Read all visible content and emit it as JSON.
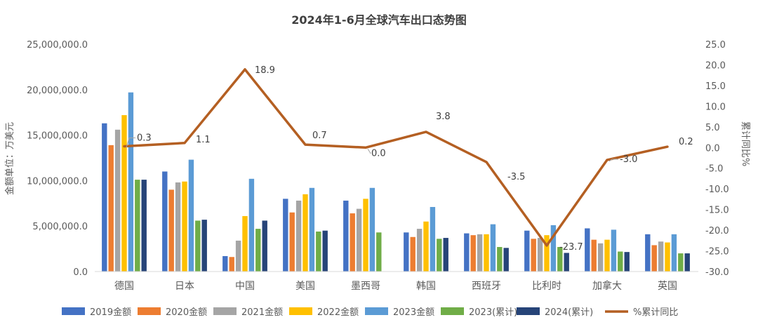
{
  "chart_data": {
    "type": "bar",
    "title": "2024年1-6月全球汽车出口态势图",
    "ylabel": "金额单位：万美元",
    "y2label": "累计同比%",
    "categories": [
      "德国",
      "日本",
      "中国",
      "美国",
      "墨西哥",
      "韩国",
      "西班牙",
      "比利时",
      "加拿大",
      "英国"
    ],
    "ylim": [
      0,
      25000000
    ],
    "y2lim": [
      -30,
      25
    ],
    "yticks": [
      "25,000,000.0",
      "20,000,000.0",
      "15,000,000.0",
      "10,000,000.0",
      "5,000,000.0",
      "0.0"
    ],
    "y2ticks": [
      "25.0",
      "20.0",
      "15.0",
      "10.0",
      "5.0",
      "0.0",
      "-5.0",
      "-10.0",
      "-15.0",
      "-20.0",
      "-25.0",
      "-30.0"
    ],
    "series": [
      {
        "name": "2019金额",
        "color": "#4472C4",
        "values": [
          16300000,
          11000000,
          1700000,
          8000000,
          7800000,
          4300000,
          4200000,
          4500000,
          4750000,
          4100000
        ]
      },
      {
        "name": "2020金额",
        "color": "#ED7D31",
        "values": [
          13900000,
          9000000,
          1600000,
          6500000,
          6400000,
          3800000,
          4000000,
          3600000,
          3500000,
          2900000
        ]
      },
      {
        "name": "2021金额",
        "color": "#A5A5A5",
        "values": [
          15600000,
          9800000,
          3400000,
          7800000,
          6900000,
          4700000,
          4100000,
          3700000,
          3100000,
          3300000
        ]
      },
      {
        "name": "2022金额",
        "color": "#FFC000",
        "values": [
          17200000,
          9900000,
          6100000,
          8500000,
          8000000,
          5500000,
          4100000,
          4000000,
          3500000,
          3200000
        ]
      },
      {
        "name": "2023金额",
        "color": "#5B9BD5",
        "values": [
          19700000,
          12300000,
          10200000,
          9200000,
          9200000,
          7100000,
          5200000,
          5100000,
          4600000,
          4100000
        ]
      },
      {
        "name": "2023(累计)",
        "color": "#70AD47",
        "values": [
          10100000,
          5600000,
          4700000,
          4400000,
          4300000,
          3600000,
          2700000,
          2700000,
          2200000,
          2000000
        ]
      },
      {
        "name": "2024(累计)",
        "color": "#264478",
        "values": [
          10100000,
          5700000,
          5600000,
          4500000,
          null,
          3700000,
          2600000,
          2050000,
          2150000,
          2000000
        ]
      }
    ],
    "line": {
      "name": "%累计同比",
      "color": "#B45F22",
      "values": [
        0.3,
        1.1,
        18.9,
        0.7,
        0.0,
        3.8,
        -3.5,
        -23.7,
        -3.0,
        0.2
      ],
      "labels": [
        "0.3",
        "1.1",
        "18.9",
        "0.7",
        "0.0",
        "3.8",
        "-3.5",
        "-23.7",
        "-3.0",
        "0.2"
      ]
    },
    "grid": false,
    "legend_position": "bottom"
  }
}
